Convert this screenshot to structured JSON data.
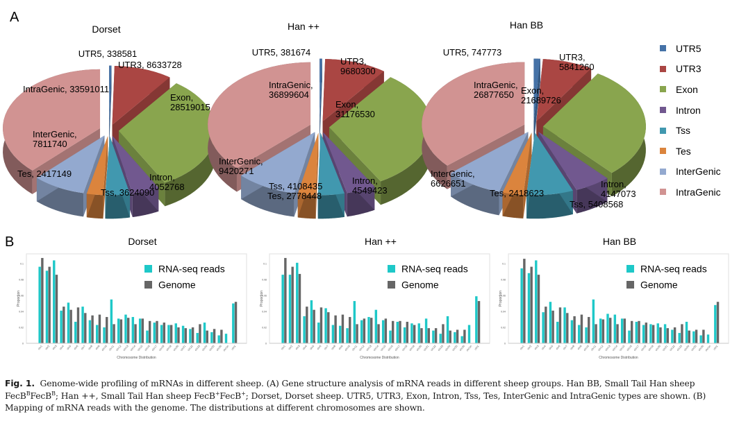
{
  "panels": {
    "a_label": "A",
    "b_label": "B"
  },
  "pie_legend": [
    {
      "label": "UTR5",
      "color": "#4572a7"
    },
    {
      "label": "UTR3",
      "color": "#aa4643"
    },
    {
      "label": "Exon",
      "color": "#89a54e"
    },
    {
      "label": "Intron",
      "color": "#71588f"
    },
    {
      "label": "Tss",
      "color": "#4198af"
    },
    {
      "label": "Tes",
      "color": "#db843d"
    },
    {
      "label": "InterGenic",
      "color": "#93a9cf"
    },
    {
      "label": "IntraGenic",
      "color": "#d19392"
    }
  ],
  "chart_data": [
    {
      "type": "pie",
      "title": "Dorset",
      "labels": [
        "UTR5",
        "UTR3",
        "Exon",
        "Intron",
        "Tss",
        "Tes",
        "InterGenic",
        "IntraGenic"
      ],
      "values": [
        338581,
        8633728,
        28519015,
        4052768,
        3624090,
        2417149,
        7811740,
        33591011
      ],
      "data_labels": [
        "UTR5, 338581",
        "UTR3, 8633728",
        "Exon,\n28519015",
        "Intron,\n4052768",
        "Tss, 3624090",
        "Tes, 2417149",
        "InterGenic,\n7811740",
        "IntraGenic, 33591011"
      ],
      "legend": "right"
    },
    {
      "type": "pie",
      "title": "Han ++",
      "labels": [
        "UTR5",
        "UTR3",
        "Exon",
        "Intron",
        "Tss",
        "Tes",
        "InterGenic",
        "IntraGenic"
      ],
      "values": [
        381674,
        9680300,
        31176530,
        4549423,
        4108435,
        2778448,
        9420271,
        36899604
      ],
      "data_labels": [
        "UTR5, 381674",
        "UTR3,\n9680300",
        "Exon,\n31176530",
        "Intron,\n4549423",
        "Tss, 4108435",
        "Tes, 2778448",
        "InterGenic,\n9420271",
        "IntraGenic,\n36899604"
      ],
      "legend": "right"
    },
    {
      "type": "pie",
      "title": "Han BB",
      "labels": [
        "UTR5",
        "UTR3",
        "Exon",
        "Intron",
        "Tss",
        "Tes",
        "InterGenic",
        "IntraGenic"
      ],
      "values": [
        747773,
        5841260,
        21689726,
        4147073,
        5408568,
        2418623,
        6626651,
        26877650
      ],
      "data_labels": [
        "UTR5, 747773",
        "UTR3,\n5841260",
        "Exon,\n21689726",
        "Intron,\n4147073",
        "Tss, 5408568",
        "Tes, 2418623",
        "InterGenic,\n6626651",
        "IntraGenic,\n26877650"
      ],
      "legend": "right"
    },
    {
      "type": "bar",
      "title": "Dorset",
      "xlabel": "Chromosome Distribution",
      "ylabel": "Proportion",
      "ylim": [
        0,
        0.1
      ],
      "yticks": [
        "0",
        "0.02",
        "0.04",
        "0.06",
        "0.08",
        "0.1"
      ],
      "legend": "top-right",
      "categories": [
        "chr1",
        "chr2",
        "chr3",
        "chr4",
        "chr5",
        "chr6",
        "chr7",
        "chr8",
        "chr9",
        "chr10",
        "chr11",
        "chr12",
        "chr13",
        "chr14",
        "chr15",
        "chr16",
        "chr17",
        "chr18",
        "chr19",
        "chr20",
        "chr21",
        "chr22",
        "chr23",
        "chr24",
        "chr25",
        "chr26",
        "chrUn",
        "chrX"
      ],
      "series": [
        {
          "name": "RNA-seq reads",
          "color": "#1ec8c8",
          "values": [
            0.096,
            0.091,
            0.104,
            0.041,
            0.051,
            0.027,
            0.046,
            0.029,
            0.023,
            0.02,
            0.055,
            0.031,
            0.036,
            0.033,
            0.031,
            0.016,
            0.026,
            0.023,
            0.023,
            0.025,
            0.022,
            0.018,
            0.013,
            0.026,
            0.014,
            0.01,
            0.012,
            0.05
          ]
        },
        {
          "name": "Genome",
          "color": "#666666",
          "values": [
            0.107,
            0.096,
            0.086,
            0.046,
            0.042,
            0.045,
            0.038,
            0.035,
            0.036,
            0.033,
            0.024,
            0.03,
            0.032,
            0.024,
            0.031,
            0.028,
            0.028,
            0.026,
            0.023,
            0.02,
            0.019,
            0.02,
            0.024,
            0.016,
            0.018,
            0.017,
            0,
            0.052
          ]
        }
      ]
    },
    {
      "type": "bar",
      "title": "Han ++",
      "xlabel": "Chromosome Distribution",
      "ylabel": "Proportion",
      "ylim": [
        0,
        0.1
      ],
      "yticks": [
        "0",
        "0.02",
        "0.04",
        "0.06",
        "0.08",
        "0.1"
      ],
      "legend": "top-right",
      "categories": [
        "chr1",
        "chr2",
        "chr3",
        "chr4",
        "chr5",
        "chr6",
        "chr7",
        "chr8",
        "chr9",
        "chr10",
        "chr11",
        "chr12",
        "chr13",
        "chr14",
        "chr15",
        "chr16",
        "chr17",
        "chr18",
        "chr19",
        "chr20",
        "chr21",
        "chr22",
        "chr23",
        "chr24",
        "chr25",
        "chr26",
        "chrUn",
        "chrX"
      ],
      "series": [
        {
          "name": "RNA-seq reads",
          "color": "#1ec8c8",
          "values": [
            0.086,
            0.086,
            0.101,
            0.034,
            0.054,
            0.026,
            0.044,
            0.023,
            0.022,
            0.019,
            0.053,
            0.029,
            0.033,
            0.042,
            0.029,
            0.016,
            0.027,
            0.02,
            0.025,
            0.025,
            0.031,
            0.016,
            0.012,
            0.034,
            0.014,
            0.009,
            0.023,
            0.059
          ]
        },
        {
          "name": "Genome",
          "color": "#666666",
          "values": [
            0.107,
            0.096,
            0.087,
            0.046,
            0.042,
            0.045,
            0.039,
            0.035,
            0.036,
            0.033,
            0.024,
            0.031,
            0.032,
            0.024,
            0.031,
            0.028,
            0.028,
            0.027,
            0.023,
            0.019,
            0.019,
            0.019,
            0.024,
            0.016,
            0.017,
            0.017,
            0,
            0.053
          ]
        }
      ]
    },
    {
      "type": "bar",
      "title": "Han BB",
      "xlabel": "Chromosome Distribution",
      "ylabel": "Proportion",
      "ylim": [
        0,
        0.1
      ],
      "yticks": [
        "0",
        "0.02",
        "0.04",
        "0.06",
        "0.08",
        "0.1"
      ],
      "legend": "top-right",
      "categories": [
        "chr1",
        "chr2",
        "chr3",
        "chr4",
        "chr5",
        "chr6",
        "chr7",
        "chr8",
        "chr9",
        "chr10",
        "chr11",
        "chr12",
        "chr13",
        "chr14",
        "chr15",
        "chr16",
        "chr17",
        "chr18",
        "chr19",
        "chr20",
        "chr21",
        "chr22",
        "chr23",
        "chr24",
        "chr25",
        "chr26",
        "chrUn",
        "chrX"
      ],
      "series": [
        {
          "name": "RNA-seq reads",
          "color": "#1ec8c8",
          "values": [
            0.094,
            0.088,
            0.104,
            0.039,
            0.052,
            0.027,
            0.045,
            0.029,
            0.023,
            0.02,
            0.055,
            0.031,
            0.037,
            0.036,
            0.031,
            0.016,
            0.027,
            0.023,
            0.024,
            0.025,
            0.024,
            0.017,
            0.013,
            0.027,
            0.015,
            0.01,
            0.011,
            0.048
          ]
        },
        {
          "name": "Genome",
          "color": "#666666",
          "values": [
            0.106,
            0.096,
            0.086,
            0.046,
            0.041,
            0.045,
            0.038,
            0.034,
            0.036,
            0.033,
            0.024,
            0.03,
            0.032,
            0.024,
            0.031,
            0.028,
            0.028,
            0.026,
            0.023,
            0.02,
            0.019,
            0.02,
            0.024,
            0.016,
            0.017,
            0.017,
            0,
            0.052
          ]
        }
      ]
    }
  ],
  "caption": {
    "fig_label": "Fig. 1.",
    "line1_pre": "Genome-wide profiling of mRNAs in different sheep. (A) Gene structure analysis of mRNA reads in different sheep groups. Han BB, Small Tail Han sheep FecB",
    "sup_b": "B",
    "fecb": "FecB",
    "semi": ";",
    "line2_pre": "Han ++, Small Tail Han sheep FecB",
    "sup_plus": "+",
    "line2_post": "; Dorset, Dorset sheep. UTR5, UTR3, Exon, Intron, Tss, Tes, InterGenic and IntraGenic types are shown. (B) Mapping of mRNA reads with the genome. The distributions at different chromosomes are shown."
  }
}
